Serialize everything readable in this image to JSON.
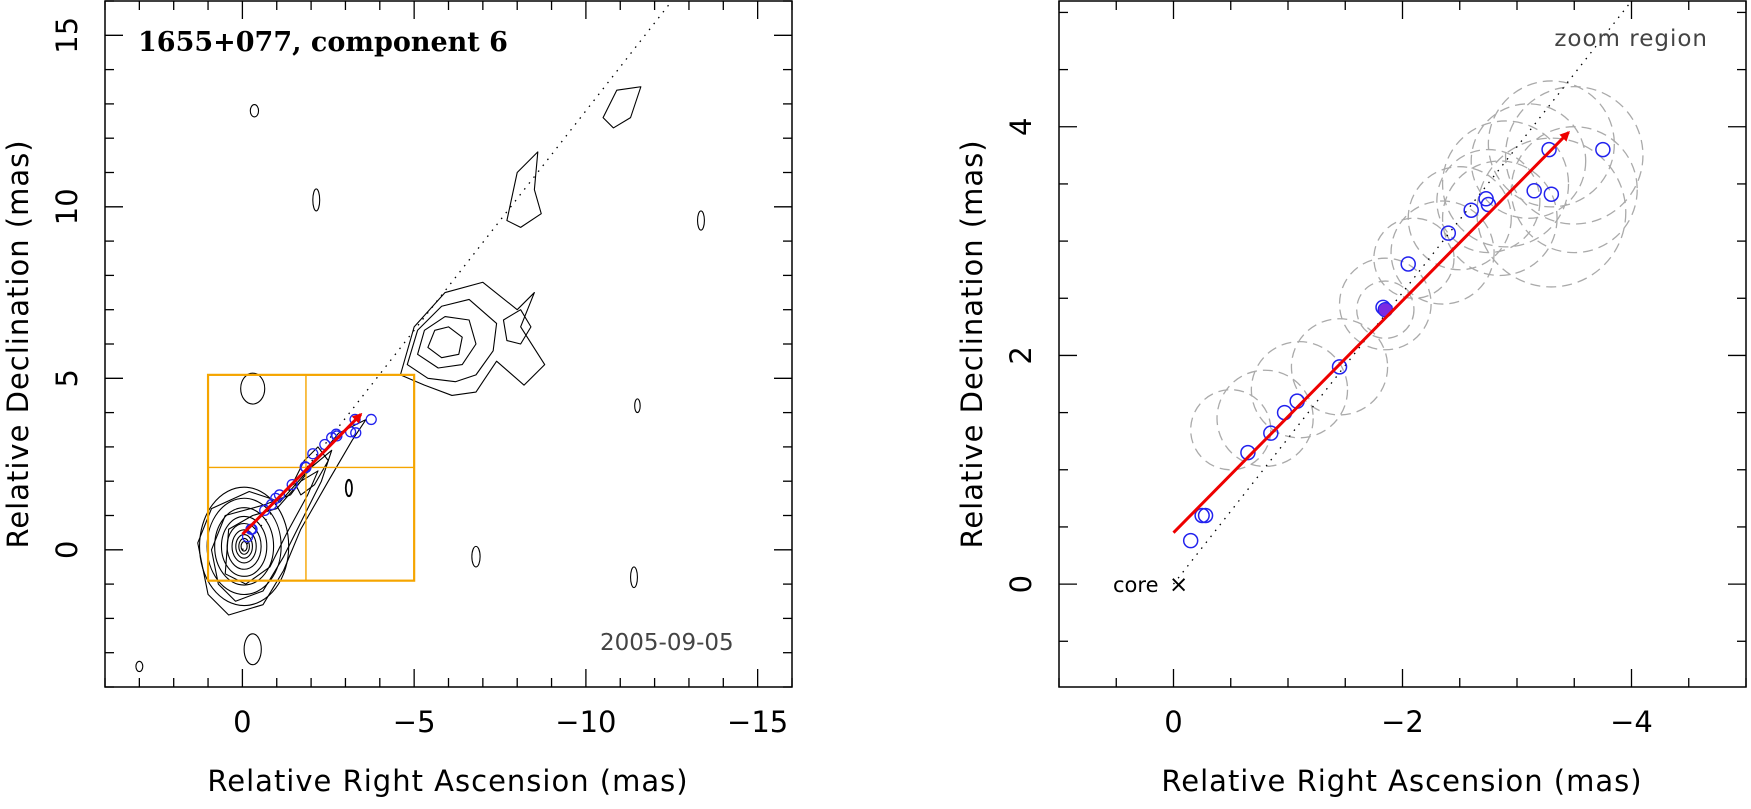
{
  "chart_data": [
    {
      "type": "scatter",
      "panel": "left",
      "title": "1655+077, component 6",
      "epoch_label": "2005-09-05",
      "xlabel": "Relative Right Ascension (mas)",
      "ylabel": "Relative Declination (mas)",
      "xlim": [
        4,
        -16
      ],
      "ylim": [
        -4,
        16
      ],
      "xticks": [
        0,
        -5,
        -10,
        -15
      ],
      "yticks": [
        0,
        5,
        10,
        15
      ],
      "xtick_labels": [
        "0",
        "−5",
        "−10",
        "−15"
      ],
      "ytick_labels": [
        "0",
        "5",
        "10",
        "15"
      ],
      "contour_peak": [
        0.0,
        0.0
      ],
      "zoom_box": {
        "x_range": [
          1.0,
          -5.0
        ],
        "y_range": [
          -0.9,
          5.1
        ]
      },
      "zoom_crosshair": {
        "x": -1.85,
        "y": 2.4
      },
      "trajectory_line": {
        "from": [
          0,
          0
        ],
        "to": [
          -12.5,
          16
        ]
      },
      "velocity_arrow": {
        "from": [
          0.0,
          0.45
        ],
        "to": [
          -3.45,
          3.95
        ]
      },
      "component_positions": [
        [
          -0.15,
          0.38
        ],
        [
          -0.25,
          0.6
        ],
        [
          -0.28,
          0.6
        ],
        [
          -0.65,
          1.15
        ],
        [
          -0.85,
          1.32
        ],
        [
          -0.97,
          1.5
        ],
        [
          -1.08,
          1.6
        ],
        [
          -1.45,
          1.9
        ],
        [
          -1.83,
          2.42
        ],
        [
          -1.85,
          2.4
        ],
        [
          -2.05,
          2.8
        ],
        [
          -2.4,
          3.07
        ],
        [
          -2.6,
          3.27
        ],
        [
          -2.73,
          3.37
        ],
        [
          -2.75,
          3.32
        ],
        [
          -3.15,
          3.44
        ],
        [
          -3.28,
          3.8
        ],
        [
          -3.3,
          3.41
        ],
        [
          -3.75,
          3.8
        ]
      ]
    },
    {
      "type": "scatter",
      "panel": "right",
      "title": "",
      "xlabel": "Relative Right Ascension (mas)",
      "ylabel": "Relative Declination (mas)",
      "xlim": [
        1.0,
        -5.0
      ],
      "ylim": [
        -0.9,
        5.1
      ],
      "xticks": [
        0,
        -2,
        -4
      ],
      "yticks": [
        0,
        2,
        4
      ],
      "xtick_labels": [
        "0",
        "−2",
        "−4"
      ],
      "ytick_labels": [
        "0",
        "2",
        "4"
      ],
      "annotations": {
        "core_label": "core",
        "core_marker": "×",
        "zoom_label": "zoom region"
      },
      "core_position": [
        0,
        0
      ],
      "trajectory_line": {
        "from": [
          0,
          0
        ],
        "to": [
          -4.0,
          5.1
        ]
      },
      "velocity_arrow": {
        "from": [
          0.0,
          0.45
        ],
        "to": [
          -3.45,
          3.95
        ]
      },
      "component_positions": [
        [
          -0.15,
          0.38
        ],
        [
          -0.25,
          0.6
        ],
        [
          -0.28,
          0.6
        ],
        [
          -0.65,
          1.15
        ],
        [
          -0.85,
          1.32
        ],
        [
          -0.97,
          1.5
        ],
        [
          -1.08,
          1.6
        ],
        [
          -1.45,
          1.9
        ],
        [
          -1.83,
          2.42
        ],
        [
          -1.85,
          2.4
        ],
        [
          -2.05,
          2.8
        ],
        [
          -2.4,
          3.07
        ],
        [
          -2.6,
          3.27
        ],
        [
          -2.73,
          3.37
        ],
        [
          -2.75,
          3.32
        ],
        [
          -3.15,
          3.44
        ],
        [
          -3.28,
          3.8
        ],
        [
          -3.3,
          3.41
        ],
        [
          -3.75,
          3.8
        ]
      ],
      "highlighted_point": [
        -1.85,
        2.4
      ],
      "component_sizes_fwhm": [
        [
          -0.5,
          1.35,
          0.35
        ],
        [
          -0.8,
          1.45,
          0.42
        ],
        [
          -1.1,
          1.7,
          0.42
        ],
        [
          -1.45,
          1.9,
          0.42
        ],
        [
          -1.85,
          2.4,
          0.25
        ],
        [
          -1.85,
          2.45,
          0.4
        ],
        [
          -2.1,
          2.85,
          0.35
        ],
        [
          -2.35,
          2.9,
          0.45
        ],
        [
          -2.5,
          3.2,
          0.45
        ],
        [
          -2.75,
          3.35,
          0.45
        ],
        [
          -2.9,
          3.5,
          0.55
        ],
        [
          -3.1,
          3.7,
          0.5
        ],
        [
          -3.3,
          3.25,
          0.65
        ],
        [
          -3.5,
          3.75,
          0.6
        ],
        [
          -3.5,
          3.45,
          0.55
        ],
        [
          -3.3,
          3.85,
          0.55
        ],
        [
          -2.85,
          3.2,
          0.5
        ]
      ]
    }
  ],
  "colors": {
    "contour": "#000000",
    "component": "#2222ee",
    "highlight": "#7a2be2",
    "arrow": "#ee0000",
    "zoom_box": "#f5a500",
    "size_circle": "#aaaaaa"
  }
}
